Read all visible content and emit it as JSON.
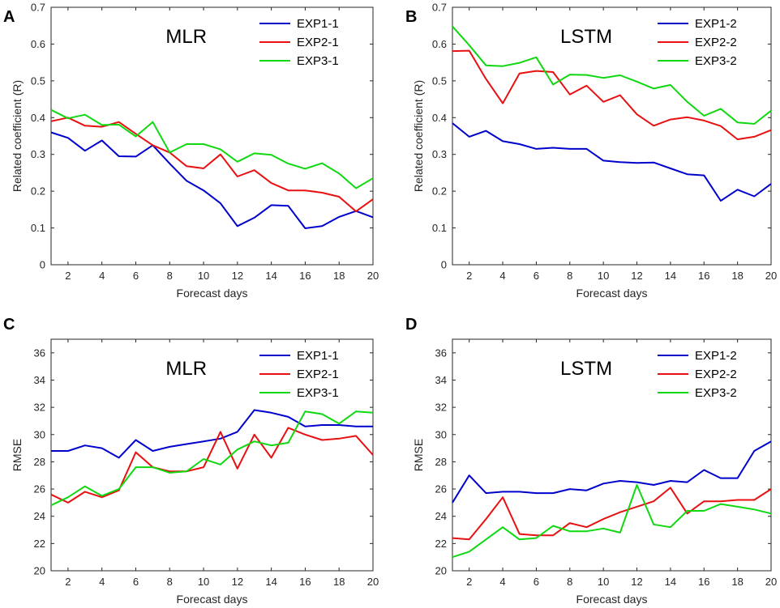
{
  "chart_data": [
    {
      "id": "A",
      "letter": "A",
      "type": "line",
      "title": "MLR",
      "xlabel": "Forecast days",
      "ylabel": "Related coefficient (R)",
      "xlim": [
        1,
        20
      ],
      "ylim": [
        0,
        0.7
      ],
      "xticks": [
        2,
        4,
        6,
        8,
        10,
        12,
        14,
        16,
        18,
        20
      ],
      "yticks": [
        0,
        0.1,
        0.2,
        0.3,
        0.4,
        0.5,
        0.6,
        0.7
      ],
      "ytick_labels": [
        "0",
        "0.1",
        "0.2",
        "0.3",
        "0.4",
        "0.5",
        "0.6",
        "0.7"
      ],
      "legend_position": "top-right",
      "x": [
        1,
        2,
        3,
        4,
        5,
        6,
        7,
        8,
        9,
        10,
        11,
        12,
        13,
        14,
        15,
        16,
        17,
        18,
        19,
        20
      ],
      "series": [
        {
          "name": "EXP1-1",
          "color": "#0000cd",
          "values": [
            0.36,
            0.345,
            0.31,
            0.338,
            0.295,
            0.294,
            0.325,
            0.275,
            0.228,
            0.202,
            0.167,
            0.105,
            0.128,
            0.162,
            0.16,
            0.099,
            0.105,
            0.13,
            0.146,
            0.129
          ]
        },
        {
          "name": "EXP2-1",
          "color": "#e81010",
          "values": [
            0.39,
            0.4,
            0.378,
            0.375,
            0.388,
            0.356,
            0.325,
            0.305,
            0.268,
            0.262,
            0.3,
            0.24,
            0.257,
            0.222,
            0.202,
            0.202,
            0.196,
            0.185,
            0.145,
            0.178
          ]
        },
        {
          "name": "EXP3-1",
          "color": "#10d810",
          "values": [
            0.421,
            0.398,
            0.408,
            0.38,
            0.381,
            0.349,
            0.388,
            0.305,
            0.328,
            0.328,
            0.314,
            0.28,
            0.303,
            0.299,
            0.275,
            0.261,
            0.276,
            0.248,
            0.208,
            0.235
          ]
        }
      ]
    },
    {
      "id": "B",
      "letter": "B",
      "type": "line",
      "title": "LSTM",
      "xlabel": "Forecast days",
      "ylabel": "Related coefficient (R)",
      "xlim": [
        1,
        20
      ],
      "ylim": [
        0,
        0.7
      ],
      "xticks": [
        2,
        4,
        6,
        8,
        10,
        12,
        14,
        16,
        18,
        20
      ],
      "yticks": [
        0,
        0.1,
        0.2,
        0.3,
        0.4,
        0.5,
        0.6,
        0.7
      ],
      "ytick_labels": [
        "0",
        "0.1",
        "0.2",
        "0.3",
        "0.4",
        "0.5",
        "0.6",
        "0.7"
      ],
      "legend_position": "top-right",
      "x": [
        1,
        2,
        3,
        4,
        5,
        6,
        7,
        8,
        9,
        10,
        11,
        12,
        13,
        14,
        15,
        16,
        17,
        18,
        19,
        20
      ],
      "series": [
        {
          "name": "EXP1-2",
          "color": "#0000cd",
          "values": [
            0.385,
            0.348,
            0.364,
            0.336,
            0.328,
            0.315,
            0.318,
            0.315,
            0.315,
            0.283,
            0.279,
            0.277,
            0.278,
            0.262,
            0.246,
            0.243,
            0.174,
            0.204,
            0.186,
            0.22
          ]
        },
        {
          "name": "EXP2-2",
          "color": "#e81010",
          "values": [
            0.581,
            0.582,
            0.505,
            0.439,
            0.52,
            0.527,
            0.524,
            0.463,
            0.487,
            0.443,
            0.461,
            0.409,
            0.378,
            0.395,
            0.401,
            0.392,
            0.377,
            0.341,
            0.348,
            0.366
          ]
        },
        {
          "name": "EXP3-2",
          "color": "#10d810",
          "values": [
            0.648,
            0.597,
            0.542,
            0.54,
            0.549,
            0.564,
            0.49,
            0.517,
            0.516,
            0.508,
            0.515,
            0.498,
            0.479,
            0.489,
            0.443,
            0.405,
            0.424,
            0.387,
            0.383,
            0.419
          ]
        }
      ]
    },
    {
      "id": "C",
      "letter": "C",
      "type": "line",
      "title": "MLR",
      "xlabel": "Forecast days",
      "ylabel": "RMSE",
      "xlim": [
        1,
        20
      ],
      "ylim": [
        20,
        37
      ],
      "xticks": [
        2,
        4,
        6,
        8,
        10,
        12,
        14,
        16,
        18,
        20
      ],
      "yticks": [
        20,
        22,
        24,
        26,
        28,
        30,
        32,
        34,
        36
      ],
      "ytick_labels": [
        "20",
        "22",
        "24",
        "26",
        "28",
        "30",
        "32",
        "34",
        "36"
      ],
      "legend_position": "top-right",
      "x": [
        1,
        2,
        3,
        4,
        5,
        6,
        7,
        8,
        9,
        10,
        11,
        12,
        13,
        14,
        15,
        16,
        17,
        18,
        19,
        20
      ],
      "series": [
        {
          "name": "EXP1-1",
          "color": "#0000cd",
          "values": [
            28.8,
            28.8,
            29.2,
            29.0,
            28.3,
            29.6,
            28.8,
            29.1,
            29.3,
            29.5,
            29.7,
            30.2,
            31.8,
            31.6,
            31.3,
            30.6,
            30.7,
            30.7,
            30.6,
            30.6
          ]
        },
        {
          "name": "EXP2-1",
          "color": "#e81010",
          "values": [
            25.6,
            25.0,
            25.8,
            25.4,
            25.9,
            28.7,
            27.6,
            27.3,
            27.3,
            27.6,
            30.2,
            27.5,
            30.0,
            28.3,
            30.5,
            30.0,
            29.6,
            29.7,
            29.9,
            28.5
          ]
        },
        {
          "name": "EXP3-1",
          "color": "#10d810",
          "values": [
            24.8,
            25.4,
            26.2,
            25.5,
            26.0,
            27.6,
            27.6,
            27.2,
            27.3,
            28.2,
            27.8,
            28.9,
            29.5,
            29.2,
            29.4,
            31.7,
            31.5,
            30.8,
            31.7,
            31.6
          ]
        }
      ]
    },
    {
      "id": "D",
      "letter": "D",
      "type": "line",
      "title": "LSTM",
      "xlabel": "Forecast days",
      "ylabel": "RMSE",
      "xlim": [
        1,
        20
      ],
      "ylim": [
        20,
        37
      ],
      "xticks": [
        2,
        4,
        6,
        8,
        10,
        12,
        14,
        16,
        18,
        20
      ],
      "yticks": [
        20,
        22,
        24,
        26,
        28,
        30,
        32,
        34,
        36
      ],
      "ytick_labels": [
        "20",
        "22",
        "24",
        "26",
        "28",
        "30",
        "32",
        "34",
        "36"
      ],
      "legend_position": "top-right",
      "x": [
        1,
        2,
        3,
        4,
        5,
        6,
        7,
        8,
        9,
        10,
        11,
        12,
        13,
        14,
        15,
        16,
        17,
        18,
        19,
        20
      ],
      "series": [
        {
          "name": "EXP1-2",
          "color": "#0000cd",
          "values": [
            25.0,
            27.0,
            25.7,
            25.8,
            25.8,
            25.7,
            25.7,
            26.0,
            25.9,
            26.4,
            26.6,
            26.5,
            26.3,
            26.6,
            26.5,
            27.4,
            26.8,
            26.8,
            28.8,
            29.5
          ]
        },
        {
          "name": "EXP2-2",
          "color": "#e81010",
          "values": [
            22.4,
            22.3,
            23.8,
            25.4,
            22.7,
            22.6,
            22.6,
            23.5,
            23.2,
            23.8,
            24.3,
            24.7,
            25.1,
            26.1,
            24.2,
            25.1,
            25.1,
            25.2,
            25.2,
            26.0
          ]
        },
        {
          "name": "EXP3-2",
          "color": "#10d810",
          "values": [
            21.0,
            21.4,
            22.3,
            23.2,
            22.3,
            22.4,
            23.3,
            22.9,
            22.9,
            23.1,
            22.8,
            26.3,
            23.4,
            23.2,
            24.4,
            24.4,
            24.9,
            24.7,
            24.5,
            24.2
          ]
        }
      ]
    }
  ]
}
